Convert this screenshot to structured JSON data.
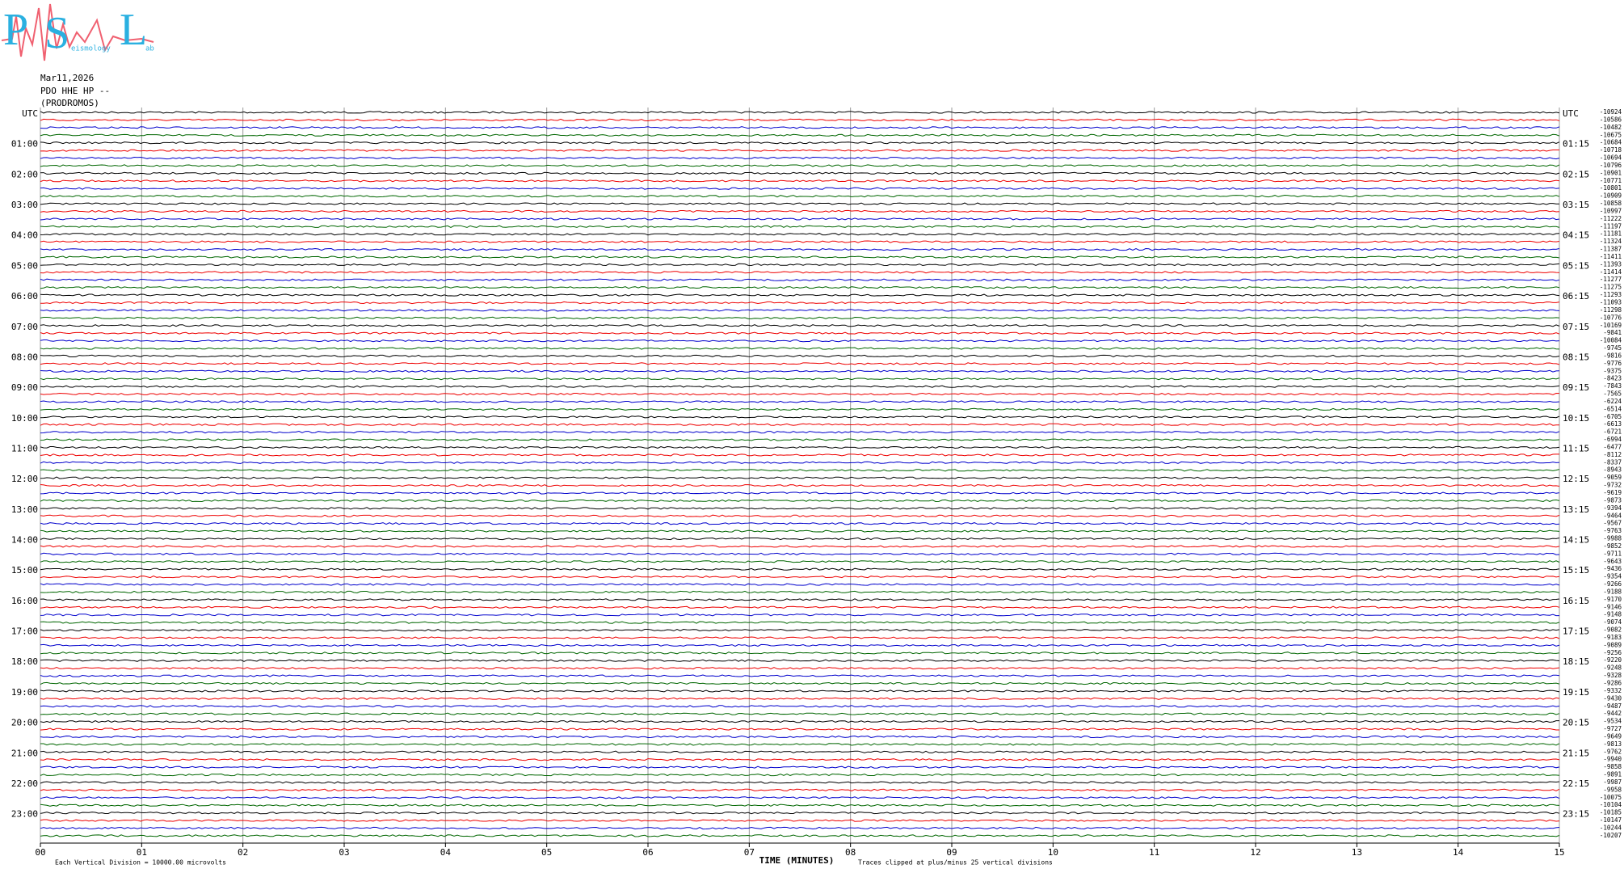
{
  "logo": {
    "letters": [
      "P",
      "S",
      "L"
    ],
    "words": [
      "eismology",
      "ab"
    ]
  },
  "header": {
    "date": "Mar11,2026",
    "station": "PDO HHE HP --",
    "site": "(PRODROMOS)"
  },
  "left_labels": [
    "UTC",
    "01:00",
    "02:00",
    "03:00",
    "04:00",
    "05:00",
    "06:00",
    "07:00",
    "08:00",
    "09:00",
    "10:00",
    "11:00",
    "12:00",
    "13:00",
    "14:00",
    "15:00",
    "16:00",
    "17:00",
    "18:00",
    "19:00",
    "20:00",
    "21:00",
    "22:00",
    "23:00"
  ],
  "right_labels": [
    "UTC",
    "01:15",
    "02:15",
    "03:15",
    "04:15",
    "05:15",
    "06:15",
    "07:15",
    "08:15",
    "09:15",
    "10:15",
    "11:15",
    "12:15",
    "13:15",
    "14:15",
    "15:15",
    "16:15",
    "17:15",
    "18:15",
    "19:15",
    "20:15",
    "21:15",
    "22:15",
    "23:15"
  ],
  "offsets": [
    -10924,
    -10586,
    -10482,
    -10675,
    -10684,
    -10718,
    -10694,
    -10796,
    -10901,
    -10771,
    -10801,
    -10909,
    -10858,
    -10997,
    -11222,
    -11197,
    -11181,
    -11324,
    -11387,
    -11411,
    -11393,
    -11414,
    -11277,
    -11275,
    -11293,
    -11093,
    -11298,
    -10776,
    -10169,
    -9841,
    -10084,
    -9745,
    -9816,
    -9776,
    -9375,
    -8423,
    -7843,
    -7565,
    -6224,
    -6514,
    -6705,
    -6613,
    -6721,
    -6994,
    -6477,
    -8112,
    -8337,
    -8943,
    -9059,
    -9732,
    -9619,
    -9873,
    -9394,
    -9464,
    -9567,
    -9763,
    -9988,
    -9852,
    -9711,
    -9643,
    -9436,
    -9354,
    -9266,
    -9188,
    -9170,
    -9146,
    -9148,
    -9074,
    -9082,
    -9183,
    -9089,
    -9256,
    -9220,
    -9248,
    -9328,
    -9286,
    -9332,
    -9430,
    -9487,
    -9442,
    -9534,
    -9727,
    -9649,
    -9813,
    -9762,
    -9940,
    -9858,
    -9891,
    -9987,
    -9958,
    -10075,
    -10104,
    -10185,
    -10147,
    -10244,
    -10207
  ],
  "x_ticks": [
    "00",
    "01",
    "02",
    "03",
    "04",
    "05",
    "06",
    "07",
    "08",
    "09",
    "10",
    "11",
    "12",
    "13",
    "14",
    "15"
  ],
  "footer": {
    "scale": "Each Vertical Division = 10000.00 microvolts",
    "axis_title": "TIME (MINUTES)",
    "clip": "Traces clipped at plus/minus 25 vertical divisions"
  }
}
